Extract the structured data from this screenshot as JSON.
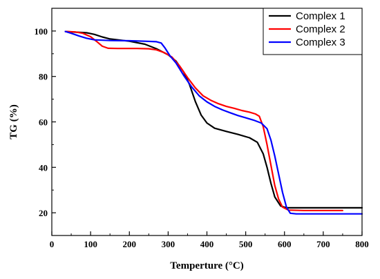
{
  "chart_data": {
    "type": "line",
    "title": "",
    "xlabel": "Temperture (°C)",
    "ylabel": "TG (%)",
    "xlim": [
      0,
      800
    ],
    "ylim": [
      10,
      110
    ],
    "x_ticks": [
      0,
      100,
      200,
      300,
      400,
      500,
      600,
      700,
      800
    ],
    "y_ticks": [
      20,
      40,
      60,
      80,
      100
    ],
    "grid": false,
    "legend_position": "top-right",
    "series": [
      {
        "name": "Complex 1",
        "color": "#000000",
        "points": [
          [
            35,
            99.8
          ],
          [
            60,
            99.5
          ],
          [
            90,
            99.2
          ],
          [
            110,
            98.5
          ],
          [
            130,
            97.4
          ],
          [
            150,
            96.5
          ],
          [
            200,
            95.5
          ],
          [
            240,
            94.2
          ],
          [
            270,
            92.2
          ],
          [
            300,
            89.5
          ],
          [
            320,
            86.8
          ],
          [
            340,
            82.0
          ],
          [
            355,
            76.5
          ],
          [
            370,
            69.0
          ],
          [
            385,
            63.0
          ],
          [
            400,
            59.5
          ],
          [
            420,
            57.2
          ],
          [
            450,
            55.8
          ],
          [
            480,
            54.5
          ],
          [
            510,
            53.0
          ],
          [
            530,
            51.0
          ],
          [
            545,
            46.0
          ],
          [
            555,
            40.0
          ],
          [
            565,
            33.0
          ],
          [
            575,
            27.0
          ],
          [
            590,
            23.0
          ],
          [
            605,
            22.2
          ],
          [
            650,
            22.2
          ],
          [
            700,
            22.2
          ],
          [
            760,
            22.2
          ],
          [
            800,
            22.2
          ]
        ]
      },
      {
        "name": "Complex 2",
        "color": "#ff0000",
        "points": [
          [
            35,
            99.8
          ],
          [
            60,
            99.6
          ],
          [
            80,
            99.0
          ],
          [
            100,
            97.5
          ],
          [
            115,
            95.5
          ],
          [
            130,
            93.3
          ],
          [
            145,
            92.4
          ],
          [
            170,
            92.3
          ],
          [
            220,
            92.3
          ],
          [
            250,
            92.2
          ],
          [
            270,
            91.7
          ],
          [
            290,
            90.5
          ],
          [
            310,
            88.5
          ],
          [
            330,
            84.5
          ],
          [
            350,
            79.5
          ],
          [
            370,
            75.0
          ],
          [
            390,
            71.5
          ],
          [
            410,
            69.5
          ],
          [
            430,
            68.0
          ],
          [
            450,
            66.8
          ],
          [
            470,
            66.0
          ],
          [
            490,
            65.0
          ],
          [
            510,
            64.3
          ],
          [
            525,
            63.5
          ],
          [
            535,
            62.5
          ],
          [
            545,
            58.0
          ],
          [
            555,
            50.0
          ],
          [
            565,
            41.0
          ],
          [
            575,
            32.0
          ],
          [
            585,
            26.0
          ],
          [
            595,
            22.5
          ],
          [
            610,
            21.2
          ],
          [
            650,
            21.0
          ],
          [
            700,
            21.0
          ],
          [
            750,
            21.0
          ]
        ]
      },
      {
        "name": "Complex 3",
        "color": "#0000ff",
        "points": [
          [
            35,
            99.8
          ],
          [
            50,
            99.0
          ],
          [
            70,
            97.8
          ],
          [
            90,
            96.8
          ],
          [
            110,
            96.1
          ],
          [
            150,
            95.8
          ],
          [
            200,
            95.7
          ],
          [
            240,
            95.5
          ],
          [
            270,
            95.3
          ],
          [
            282,
            94.7
          ],
          [
            292,
            92.5
          ],
          [
            305,
            89.0
          ],
          [
            320,
            86.0
          ],
          [
            340,
            80.5
          ],
          [
            360,
            75.5
          ],
          [
            380,
            71.5
          ],
          [
            400,
            68.8
          ],
          [
            420,
            66.8
          ],
          [
            440,
            65.3
          ],
          [
            460,
            64.0
          ],
          [
            480,
            62.8
          ],
          [
            500,
            61.8
          ],
          [
            520,
            60.8
          ],
          [
            540,
            59.5
          ],
          [
            555,
            57.0
          ],
          [
            565,
            52.0
          ],
          [
            575,
            45.0
          ],
          [
            585,
            37.0
          ],
          [
            595,
            29.0
          ],
          [
            605,
            22.5
          ],
          [
            615,
            19.8
          ],
          [
            630,
            19.5
          ],
          [
            700,
            19.5
          ],
          [
            800,
            19.5
          ]
        ]
      }
    ]
  }
}
